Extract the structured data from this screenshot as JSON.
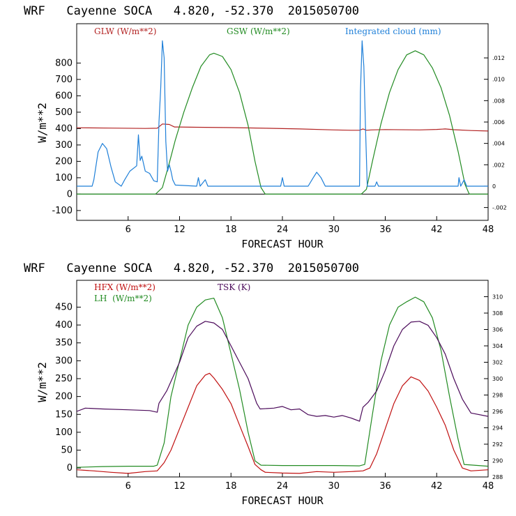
{
  "chart_data": [
    {
      "type": "line",
      "title": "WRF   Cayenne SOCA   4.820, -52.370  2015050700",
      "xlabel": "FORECAST HOUR",
      "ylabel": "W/m**2",
      "xlim": [
        0,
        48
      ],
      "ylim": [
        -160,
        1040
      ],
      "y2lim": [
        -0.0032,
        0.0152
      ],
      "x_ticks": [
        6,
        12,
        18,
        24,
        30,
        36,
        42,
        48
      ],
      "y_ticks": [
        -100,
        0,
        100,
        200,
        300,
        400,
        500,
        600,
        700,
        800
      ],
      "y2_ticks": [
        -0.002,
        0,
        0.002,
        0.004,
        0.006,
        0.008,
        0.01,
        0.012
      ],
      "y2_tick_labels": [
        "-.002",
        "0",
        ".002",
        ".004",
        ".006",
        ".008",
        ".010",
        ".012"
      ],
      "zero_line": true,
      "series": [
        {
          "name": "GLW (W/m**2)",
          "color": "#b22222",
          "axis": "left",
          "points": [
            [
              0,
              405
            ],
            [
              4,
              403
            ],
            [
              8,
              401
            ],
            [
              9.4,
              402
            ],
            [
              10,
              428
            ],
            [
              10.8,
              425
            ],
            [
              11.4,
              410
            ],
            [
              14,
              408
            ],
            [
              18,
              406
            ],
            [
              22,
              402
            ],
            [
              24,
              400
            ],
            [
              26,
              398
            ],
            [
              30,
              392
            ],
            [
              32,
              390
            ],
            [
              33,
              390
            ],
            [
              33.4,
              398
            ],
            [
              33.8,
              390
            ],
            [
              34.4,
              392
            ],
            [
              36,
              394
            ],
            [
              40,
              392
            ],
            [
              42,
              395
            ],
            [
              43,
              398
            ],
            [
              44,
              393
            ],
            [
              46,
              388
            ],
            [
              48,
              385
            ]
          ]
        },
        {
          "name": "GSW (W/m**2)",
          "color": "#228b22",
          "axis": "left",
          "points": [
            [
              0,
              0
            ],
            [
              9.2,
              0
            ],
            [
              10,
              40
            ],
            [
              10.8,
              190
            ],
            [
              11.5,
              330
            ],
            [
              12.5,
              500
            ],
            [
              13.5,
              650
            ],
            [
              14.5,
              780
            ],
            [
              15.5,
              850
            ],
            [
              16,
              860
            ],
            [
              17,
              840
            ],
            [
              18,
              760
            ],
            [
              19,
              620
            ],
            [
              20,
              420
            ],
            [
              20.8,
              200
            ],
            [
              21.5,
              40
            ],
            [
              22,
              0
            ],
            [
              33.2,
              0
            ],
            [
              33.8,
              30
            ],
            [
              34.5,
              200
            ],
            [
              35.5,
              430
            ],
            [
              36.5,
              620
            ],
            [
              37.5,
              760
            ],
            [
              38.5,
              850
            ],
            [
              39.5,
              875
            ],
            [
              40.5,
              850
            ],
            [
              41.5,
              770
            ],
            [
              42.5,
              650
            ],
            [
              43.5,
              480
            ],
            [
              44.5,
              260
            ],
            [
              45.3,
              60
            ],
            [
              45.8,
              0
            ],
            [
              48,
              0
            ]
          ]
        },
        {
          "name": "Integrated cloud (mm)",
          "color": "#1e7fd8",
          "axis": "right",
          "points": [
            [
              0,
              0
            ],
            [
              1.8,
              0
            ],
            [
              2,
              0.0006
            ],
            [
              2.5,
              0.0032
            ],
            [
              3,
              0.004
            ],
            [
              3.5,
              0.0035
            ],
            [
              4,
              0.0018
            ],
            [
              4.5,
              0.0004
            ],
            [
              5.2,
              0
            ],
            [
              5.6,
              0.0006
            ],
            [
              6.2,
              0.0014
            ],
            [
              7,
              0.0019
            ],
            [
              7.2,
              0.0048
            ],
            [
              7.4,
              0.0024
            ],
            [
              7.6,
              0.0028
            ],
            [
              8,
              0.0014
            ],
            [
              8.5,
              0.0012
            ],
            [
              9,
              0.0005
            ],
            [
              9.4,
              0.0004
            ],
            [
              9.6,
              0.006
            ],
            [
              9.8,
              0.0092
            ],
            [
              10,
              0.0136
            ],
            [
              10.2,
              0.012
            ],
            [
              10.4,
              0.0042
            ],
            [
              10.6,
              0.0014
            ],
            [
              10.8,
              0.002
            ],
            [
              11,
              0.0014
            ],
            [
              11.2,
              0.0006
            ],
            [
              11.5,
              0.0001
            ],
            [
              14,
              0
            ],
            [
              14.2,
              0.0008
            ],
            [
              14.4,
              0
            ],
            [
              15,
              0.0006
            ],
            [
              15.3,
              0
            ],
            [
              23.8,
              0
            ],
            [
              24,
              0.0008
            ],
            [
              24.2,
              0
            ],
            [
              27,
              0
            ],
            [
              27.6,
              0.0008
            ],
            [
              28,
              0.0013
            ],
            [
              28.5,
              0.0008
            ],
            [
              29,
              0
            ],
            [
              33,
              0
            ],
            [
              33.1,
              0.0088
            ],
            [
              33.3,
              0.0136
            ],
            [
              33.5,
              0.0112
            ],
            [
              33.7,
              0.0054
            ],
            [
              33.9,
              0
            ],
            [
              34.8,
              0
            ],
            [
              35,
              0.0004
            ],
            [
              35.2,
              0
            ],
            [
              44.5,
              0
            ],
            [
              44.6,
              0.0008
            ],
            [
              44.8,
              0
            ],
            [
              45.2,
              0.0006
            ],
            [
              45.5,
              0
            ],
            [
              48,
              0
            ]
          ]
        }
      ]
    },
    {
      "type": "line",
      "title": "WRF   Cayenne SOCA   4.820, -52.370  2015050700",
      "xlabel": "FORECAST HOUR",
      "ylabel": "W/m**2",
      "xlim": [
        0,
        48
      ],
      "ylim": [
        -25,
        525
      ],
      "y2lim": [
        288,
        312
      ],
      "x_ticks": [
        6,
        12,
        18,
        24,
        30,
        36,
        42,
        48
      ],
      "y_ticks": [
        0,
        50,
        100,
        150,
        200,
        250,
        300,
        350,
        400,
        450
      ],
      "y2_ticks": [
        288,
        290,
        292,
        294,
        296,
        298,
        300,
        302,
        304,
        306,
        308,
        310
      ],
      "y2_tick_labels": [
        "288",
        "290",
        "292",
        "294",
        "296",
        "298",
        "300",
        "302",
        "304",
        "306",
        "308",
        "310"
      ],
      "zero_line": false,
      "series": [
        {
          "name": "HFX (W/m**2)",
          "color": "#c01010",
          "axis": "left",
          "points": [
            [
              0,
              -5
            ],
            [
              2,
              -8
            ],
            [
              4,
              -12
            ],
            [
              6,
              -15
            ],
            [
              8,
              -10
            ],
            [
              9.4,
              -8
            ],
            [
              10.2,
              15
            ],
            [
              11,
              50
            ],
            [
              12,
              110
            ],
            [
              13,
              170
            ],
            [
              14,
              230
            ],
            [
              15,
              260
            ],
            [
              15.5,
              265
            ],
            [
              16,
              252
            ],
            [
              17,
              220
            ],
            [
              18,
              180
            ],
            [
              19,
              120
            ],
            [
              20,
              60
            ],
            [
              20.8,
              10
            ],
            [
              21.5,
              -5
            ],
            [
              22,
              -12
            ],
            [
              24,
              -14
            ],
            [
              26,
              -15
            ],
            [
              28,
              -10
            ],
            [
              30,
              -12
            ],
            [
              32,
              -10
            ],
            [
              33.4,
              -8
            ],
            [
              34.2,
              0
            ],
            [
              35,
              40
            ],
            [
              36,
              110
            ],
            [
              37,
              180
            ],
            [
              38,
              230
            ],
            [
              39,
              255
            ],
            [
              40,
              245
            ],
            [
              41,
              215
            ],
            [
              42,
              170
            ],
            [
              43,
              120
            ],
            [
              44,
              50
            ],
            [
              45,
              0
            ],
            [
              46,
              -8
            ],
            [
              48,
              -5
            ]
          ]
        },
        {
          "name": "LH  (W/m**2)",
          "color": "#228b22",
          "axis": "left",
          "points": [
            [
              0,
              2
            ],
            [
              3,
              4
            ],
            [
              6,
              5
            ],
            [
              9,
              5
            ],
            [
              9.4,
              8
            ],
            [
              10.2,
              70
            ],
            [
              11,
              200
            ],
            [
              12,
              300
            ],
            [
              13,
              400
            ],
            [
              14,
              450
            ],
            [
              15,
              470
            ],
            [
              16,
              475
            ],
            [
              17,
              420
            ],
            [
              18,
              320
            ],
            [
              19,
              220
            ],
            [
              20,
              100
            ],
            [
              20.8,
              20
            ],
            [
              21.5,
              8
            ],
            [
              24,
              7
            ],
            [
              30,
              7
            ],
            [
              33,
              6
            ],
            [
              33.6,
              10
            ],
            [
              34.5,
              150
            ],
            [
              35.5,
              300
            ],
            [
              36.5,
              400
            ],
            [
              37.5,
              450
            ],
            [
              38.5,
              465
            ],
            [
              39.5,
              478
            ],
            [
              40.5,
              465
            ],
            [
              41.5,
              420
            ],
            [
              42.5,
              330
            ],
            [
              43.5,
              200
            ],
            [
              44.5,
              80
            ],
            [
              45.2,
              10
            ],
            [
              48,
              5
            ]
          ]
        },
        {
          "name": "TSK (K)",
          "color": "#4b0a5a",
          "axis": "right",
          "points": [
            [
              0,
              296
            ],
            [
              1,
              296.4
            ],
            [
              3,
              296.3
            ],
            [
              6,
              296.2
            ],
            [
              8.5,
              296.1
            ],
            [
              9.4,
              295.9
            ],
            [
              9.6,
              297
            ],
            [
              10.5,
              298.5
            ],
            [
              12,
              302
            ],
            [
              13,
              305
            ],
            [
              14,
              306.4
            ],
            [
              15,
              307
            ],
            [
              16,
              306.8
            ],
            [
              17,
              306
            ],
            [
              18,
              304
            ],
            [
              19,
              302
            ],
            [
              20,
              300
            ],
            [
              21,
              297
            ],
            [
              21.4,
              296.3
            ],
            [
              23,
              296.4
            ],
            [
              24,
              296.6
            ],
            [
              25,
              296.2
            ],
            [
              26,
              296.3
            ],
            [
              27,
              295.6
            ],
            [
              28,
              295.4
            ],
            [
              29,
              295.5
            ],
            [
              30,
              295.3
            ],
            [
              31,
              295.5
            ],
            [
              32,
              295.2
            ],
            [
              33,
              294.8
            ],
            [
              33.4,
              296.5
            ],
            [
              34,
              297.1
            ],
            [
              35,
              298.5
            ],
            [
              36,
              301
            ],
            [
              37,
              304
            ],
            [
              38,
              306
            ],
            [
              39,
              306.9
            ],
            [
              40,
              307
            ],
            [
              41,
              306.5
            ],
            [
              42,
              305
            ],
            [
              43,
              303
            ],
            [
              44,
              300
            ],
            [
              45,
              297.5
            ],
            [
              46,
              295.8
            ],
            [
              48,
              295.4
            ]
          ]
        }
      ]
    }
  ]
}
